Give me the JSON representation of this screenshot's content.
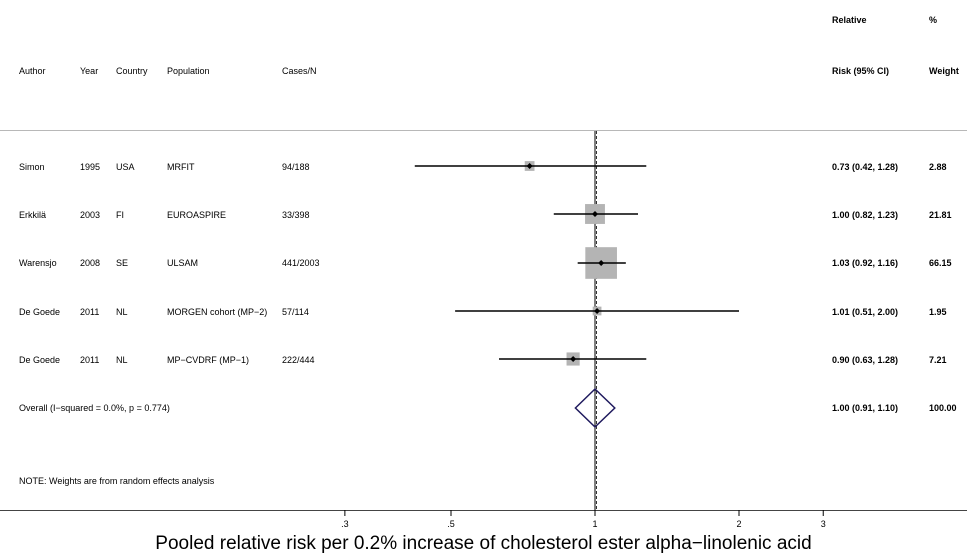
{
  "header": {
    "author": "Author",
    "year": "Year",
    "country": "Country",
    "population": "Population",
    "cases": "Cases/N",
    "rr_line1": "Relative",
    "rr_line2": "Risk (95% CI)",
    "weight_line1": "%",
    "weight_line2": "Weight"
  },
  "rows": [
    {
      "author": "Simon",
      "year": "1995",
      "country": "USA",
      "population": "MRFIT",
      "cases": "94/188",
      "rr_text": "0.73 (0.42, 1.28)",
      "weight": "2.88"
    },
    {
      "author": "Erkkilä",
      "year": "2003",
      "country": "FI",
      "population": "EUROASPIRE",
      "cases": "33/398",
      "rr_text": "1.00 (0.82, 1.23)",
      "weight": "21.81"
    },
    {
      "author": "Warensjo",
      "year": "2008",
      "country": "SE",
      "population": "ULSAM",
      "cases": "441/2003",
      "rr_text": "1.03 (0.92, 1.16)",
      "weight": "66.15"
    },
    {
      "author": "De Goede",
      "year": "2011",
      "country": "NL",
      "population": "MORGEN cohort (MP−2)",
      "cases": "57/114",
      "rr_text": "1.01 (0.51, 2.00)",
      "weight": "1.95"
    },
    {
      "author": "De Goede",
      "year": "2011",
      "country": "NL",
      "population": "MP−CVDRF (MP−1)",
      "cases": "222/444",
      "rr_text": "0.90 (0.63, 1.28)",
      "weight": "7.21"
    }
  ],
  "overall": {
    "label": "Overall  (I−squared = 0.0%, p = 0.774)",
    "rr_text": "1.00 (0.91, 1.10)",
    "weight": "100.00"
  },
  "note": "NOTE: Weights are from random effects analysis",
  "colors": {
    "weight_box": "#b4b4b4",
    "overall_diamond": "#1f1a5e",
    "reference_line": "#000000"
  },
  "chart_data": {
    "type": "scatter",
    "subtype": "forest-plot",
    "x_scale": "log",
    "xlabel": "Pooled relative risk per 0.2% increase of cholesterol ester alpha−linolenic acid",
    "xticks": [
      0.3,
      0.5,
      1,
      2,
      3
    ],
    "xtick_labels": [
      ".3",
      ".5",
      "1",
      "2",
      "3"
    ],
    "xlim": [
      0.3,
      3
    ],
    "reference_line": 1,
    "series": [
      {
        "studies": [
          "Simon",
          "Erkkilä",
          "Warensjo",
          "De Goede",
          "De Goede"
        ],
        "rr": [
          0.73,
          1.0,
          1.03,
          1.01,
          0.9
        ],
        "ci_low": [
          0.42,
          0.82,
          0.92,
          0.51,
          0.63
        ],
        "ci_high": [
          1.28,
          1.23,
          1.16,
          2.0,
          1.28
        ],
        "weight": [
          2.88,
          21.81,
          66.15,
          1.95,
          7.21
        ]
      }
    ],
    "overall": {
      "rr": 1.0,
      "ci_low": 0.91,
      "ci_high": 1.1
    },
    "grid": false
  }
}
